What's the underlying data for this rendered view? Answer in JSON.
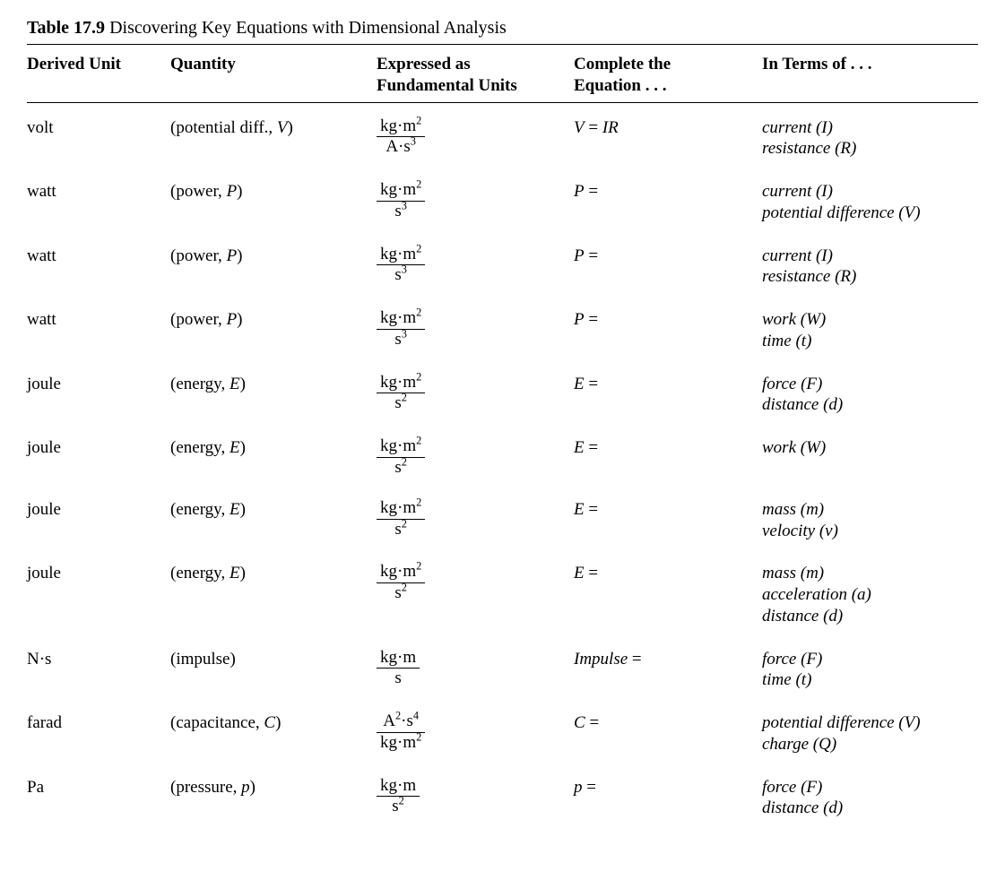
{
  "caption": {
    "label": "Table 17.9",
    "title": "Discovering Key Equations with Dimensional Analysis"
  },
  "columns": {
    "c0": "Derived Unit",
    "c1": "Quantity",
    "c2_l1": "Expressed as",
    "c2_l2": "Fundamental Units",
    "c3_l1": "Complete the",
    "c3_l2": "Equation . . .",
    "c4": "In Terms of . . ."
  },
  "rows": [
    {
      "unit": "volt",
      "qty_name": "potential diff.",
      "qty_sym": "V",
      "frac_num_html": "kg·m<sup>2</sup>",
      "frac_den_html": "A·s<sup>3</sup>",
      "eq_lhs": "V",
      "eq_rhs_html": "<span class='eq-var'>IR</span>",
      "terms": [
        "current (I)",
        "resistance (R)"
      ]
    },
    {
      "unit": "watt",
      "qty_name": "power",
      "qty_sym": "P",
      "frac_num_html": "kg·m<sup>2</sup>",
      "frac_den_html": "s<sup>3</sup>",
      "eq_lhs": "P",
      "eq_rhs_html": "",
      "terms": [
        "current (I)",
        "potential difference (V)"
      ]
    },
    {
      "unit": "watt",
      "qty_name": "power",
      "qty_sym": "P",
      "frac_num_html": "kg·m<sup>2</sup>",
      "frac_den_html": "s<sup>3</sup>",
      "eq_lhs": "P",
      "eq_rhs_html": "",
      "terms": [
        "current (I)",
        "resistance (R)"
      ]
    },
    {
      "unit": "watt",
      "qty_name": "power",
      "qty_sym": "P",
      "frac_num_html": "kg·m<sup>2</sup>",
      "frac_den_html": "s<sup>3</sup>",
      "eq_lhs": "P",
      "eq_rhs_html": "",
      "terms": [
        "work (W)",
        "time (t)"
      ]
    },
    {
      "unit": "joule",
      "qty_name": "energy",
      "qty_sym": "E",
      "frac_num_html": "kg·m<sup>2</sup>",
      "frac_den_html": "s<sup>2</sup>",
      "eq_lhs": "E",
      "eq_rhs_html": "",
      "terms": [
        "force (F)",
        "distance (d)"
      ]
    },
    {
      "unit": "joule",
      "qty_name": "energy",
      "qty_sym": "E",
      "frac_num_html": "kg·m<sup>2</sup>",
      "frac_den_html": "s<sup>2</sup>",
      "eq_lhs": "E",
      "eq_rhs_html": "",
      "terms": [
        "work (W)"
      ]
    },
    {
      "unit": "joule",
      "qty_name": "energy",
      "qty_sym": "E",
      "frac_num_html": "kg·m<sup>2</sup>",
      "frac_den_html": "s<sup>2</sup>",
      "eq_lhs": "E",
      "eq_rhs_html": "",
      "terms": [
        "mass (m)",
        "velocity (v)"
      ]
    },
    {
      "unit": "joule",
      "qty_name": "energy",
      "qty_sym": "E",
      "frac_num_html": "kg·m<sup>2</sup>",
      "frac_den_html": "s<sup>2</sup>",
      "eq_lhs": "E",
      "eq_rhs_html": "",
      "terms": [
        "mass (m)",
        "acceleration (a)",
        "distance (d)"
      ]
    },
    {
      "unit": "N·s",
      "qty_name": "impulse",
      "qty_sym": "",
      "frac_num_html": "kg·m",
      "frac_den_html": "s",
      "eq_lhs": "Impulse",
      "eq_rhs_html": "",
      "terms": [
        "force (F)",
        "time (t)"
      ]
    },
    {
      "unit": "farad",
      "qty_name": "capacitance",
      "qty_sym": "C",
      "frac_num_html": "A<sup>2</sup>·s<sup>4</sup>",
      "frac_den_html": "kg·m<sup>2</sup>",
      "eq_lhs": "C",
      "eq_rhs_html": "",
      "terms": [
        "potential difference (V)",
        "charge (Q)"
      ]
    },
    {
      "unit": "Pa",
      "qty_name": "pressure",
      "qty_sym": "p",
      "frac_num_html": "kg·m",
      "frac_den_html": "s<sup>2</sup>",
      "eq_lhs": "p",
      "eq_rhs_html": "",
      "terms": [
        "force (F)",
        "distance (d)"
      ]
    }
  ]
}
